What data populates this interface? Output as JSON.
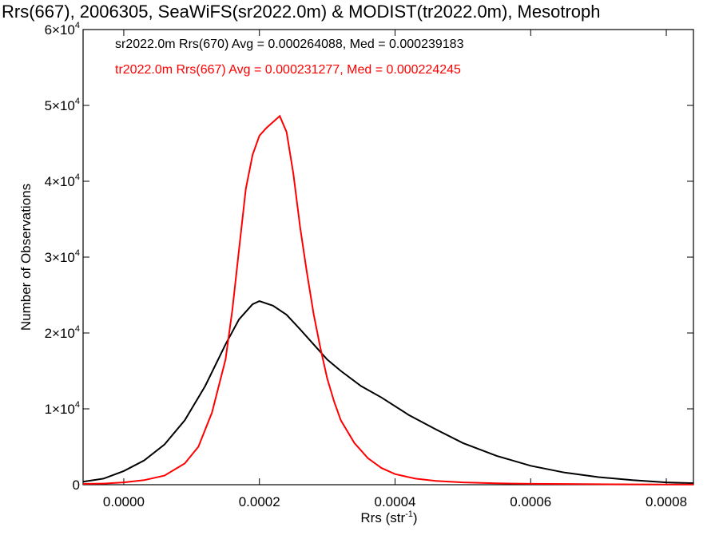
{
  "chart_data": {
    "type": "line",
    "title": "Rrs(667), 2006305, SeaWiFS(sr2022.0m) & MODIST(tr2022.0m), Mesotroph",
    "xlabel": "Rrs (str",
    "xlabel_sup": "-1",
    "xlabel_close": ")",
    "ylabel": "Number of Observations",
    "xlim": [
      -6e-05,
      0.00084
    ],
    "ylim": [
      0,
      60000
    ],
    "x_ticks": [
      {
        "value": 0.0,
        "label": "0.0000"
      },
      {
        "value": 0.0002,
        "label": "0.0002"
      },
      {
        "value": 0.0004,
        "label": "0.0004"
      },
      {
        "value": 0.0006,
        "label": "0.0006"
      },
      {
        "value": 0.0008,
        "label": "0.0008"
      }
    ],
    "y_ticks": [
      {
        "value": 0,
        "base": "0",
        "exp": ""
      },
      {
        "value": 10000,
        "base": "1×10",
        "exp": "4"
      },
      {
        "value": 20000,
        "base": "2×10",
        "exp": "4"
      },
      {
        "value": 30000,
        "base": "3×10",
        "exp": "4"
      },
      {
        "value": 40000,
        "base": "4×10",
        "exp": "4"
      },
      {
        "value": 50000,
        "base": "5×10",
        "exp": "4"
      },
      {
        "value": 60000,
        "base": "6×10",
        "exp": "4"
      }
    ],
    "grid": false,
    "legend_position": "top-left",
    "series": [
      {
        "name": "sr2022.0m Rrs(670) Avg = 0.000264088, Med = 0.000239183",
        "color": "#000000",
        "x": [
          -6e-05,
          -3e-05,
          0.0,
          3e-05,
          6e-05,
          9e-05,
          0.00012,
          0.00015,
          0.00017,
          0.00019,
          0.0002,
          0.00022,
          0.00024,
          0.00026,
          0.00028,
          0.0003,
          0.00032,
          0.00035,
          0.00038,
          0.00042,
          0.00046,
          0.0005,
          0.00055,
          0.0006,
          0.00065,
          0.0007,
          0.00075,
          0.0008,
          0.00084
        ],
        "y": [
          400,
          800,
          1800,
          3200,
          5300,
          8500,
          13000,
          18500,
          21800,
          23800,
          24200,
          23600,
          22400,
          20500,
          18500,
          16500,
          15000,
          13000,
          11500,
          9200,
          7300,
          5500,
          3800,
          2500,
          1600,
          1000,
          600,
          300,
          200
        ]
      },
      {
        "name": "tr2022.0m Rrs(667) Avg = 0.000231277, Med = 0.000224245",
        "color": "#ff0000",
        "x": [
          -6e-05,
          -3e-05,
          0.0,
          3e-05,
          6e-05,
          9e-05,
          0.00011,
          0.00013,
          0.00015,
          0.00016,
          0.00017,
          0.00018,
          0.00019,
          0.0002,
          0.00021,
          0.00022,
          0.00023,
          0.00024,
          0.00025,
          0.00026,
          0.00027,
          0.00028,
          0.00029,
          0.0003,
          0.00031,
          0.00032,
          0.00034,
          0.00036,
          0.00038,
          0.0004,
          0.00043,
          0.00046,
          0.0005,
          0.00055,
          0.0006,
          0.0007,
          0.0008,
          0.00084
        ],
        "y": [
          100,
          150,
          300,
          600,
          1200,
          2800,
          5000,
          9500,
          16500,
          23000,
          31000,
          39000,
          43500,
          46000,
          47000,
          47800,
          48600,
          46500,
          41000,
          34000,
          28000,
          22500,
          18000,
          14000,
          11000,
          8500,
          5500,
          3500,
          2200,
          1400,
          800,
          500,
          300,
          180,
          120,
          60,
          30,
          20
        ]
      }
    ]
  }
}
